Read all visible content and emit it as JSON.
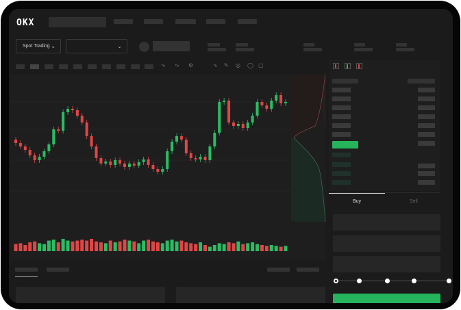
{
  "header": {
    "logo": "OKX"
  },
  "market": {
    "mode_label": "Spot Trading",
    "pair_select": ""
  },
  "trade": {
    "buy_tab": "Buy",
    "sell_tab": "Sell"
  },
  "colors": {
    "up": "#2bbd64",
    "down": "#e04646",
    "background": "#1b1b1b",
    "buy_button": "#25b35b"
  },
  "icons": {
    "dropdown": "chevron-down-icon"
  },
  "chart_data": {
    "type": "candlestick",
    "first_open": 95,
    "close": [
      90,
      85,
      80,
      72,
      65,
      70,
      78,
      88,
      110,
      108,
      135,
      140,
      138,
      130,
      120,
      100,
      85,
      68,
      60,
      63,
      58,
      65,
      60,
      55,
      60,
      57,
      62,
      66,
      58,
      52,
      48,
      52,
      78,
      92,
      100,
      95,
      75,
      68,
      66,
      70,
      65,
      85,
      105,
      150,
      152,
      120,
      115,
      118,
      112,
      120,
      130,
      150,
      145,
      140,
      152,
      160,
      148,
      150
    ],
    "volume": [
      8,
      9,
      7,
      10,
      11,
      9,
      8,
      12,
      13,
      10,
      14,
      12,
      11,
      12,
      13,
      12,
      14,
      11,
      10,
      9,
      12,
      10,
      11,
      13,
      12,
      11,
      9,
      12,
      13,
      11,
      10,
      9,
      12,
      13,
      11,
      12,
      10,
      9,
      8,
      10,
      7,
      5,
      7,
      9,
      8,
      10,
      9,
      11,
      8,
      9,
      10,
      8,
      7,
      6,
      7,
      6,
      5,
      6
    ]
  },
  "slider": {
    "value_percent": 0
  }
}
